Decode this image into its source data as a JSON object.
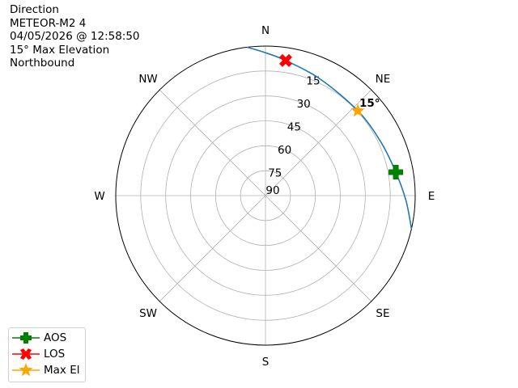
{
  "title_lines": [
    "Direction",
    "METEOR-M2 4",
    "04/05/2026 @ 12:58:50",
    "15° Max Elevation",
    "Northbound"
  ],
  "chart_data": {
    "type": "polar-line",
    "theta_zero": "N",
    "theta_direction": "clockwise",
    "radial_axis": "elevation (deg), 90 at center, 0 at edge",
    "rlim": [
      90,
      0
    ],
    "grid": true,
    "direction_labels": [
      {
        "label": "N",
        "az": 0
      },
      {
        "label": "NE",
        "az": 45
      },
      {
        "label": "E",
        "az": 90
      },
      {
        "label": "SE",
        "az": 135
      },
      {
        "label": "S",
        "az": 180
      },
      {
        "label": "SW",
        "az": 225
      },
      {
        "label": "W",
        "az": 270
      },
      {
        "label": "NW",
        "az": 315
      }
    ],
    "radial_ticks": [
      15,
      30,
      45,
      60,
      75,
      90
    ],
    "track": {
      "color": "#1f77b4",
      "az": [
        -7,
        0,
        8.5,
        25,
        47.4,
        65,
        79.8,
        92,
        102.8
      ],
      "el": [
        0,
        4,
        7.8,
        12.5,
        14.6,
        13.5,
        10.4,
        5.5,
        0
      ]
    },
    "markers": [
      {
        "name": "AOS",
        "az": 79.8,
        "el": 10.4,
        "color": "#008000",
        "symbol": "plus"
      },
      {
        "name": "LOS",
        "az": 8.5,
        "el": 7.8,
        "color": "#ff0000",
        "symbol": "x"
      },
      {
        "name": "Max El",
        "az": 47.4,
        "el": 14.6,
        "color": "#ffa500",
        "symbol": "star"
      }
    ],
    "annotation": {
      "text": "15°",
      "az": 48,
      "el": 7
    },
    "legend": {
      "position": "lower-left",
      "entries": [
        "AOS",
        "LOS",
        "Max El"
      ]
    }
  }
}
